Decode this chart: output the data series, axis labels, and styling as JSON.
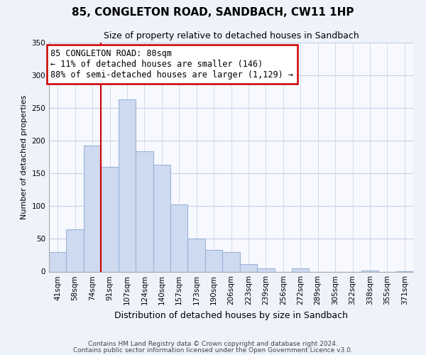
{
  "title": "85, CONGLETON ROAD, SANDBACH, CW11 1HP",
  "subtitle": "Size of property relative to detached houses in Sandbach",
  "xlabel": "Distribution of detached houses by size in Sandbach",
  "ylabel": "Number of detached properties",
  "bar_labels": [
    "41sqm",
    "58sqm",
    "74sqm",
    "91sqm",
    "107sqm",
    "124sqm",
    "140sqm",
    "157sqm",
    "173sqm",
    "190sqm",
    "206sqm",
    "223sqm",
    "239sqm",
    "256sqm",
    "272sqm",
    "289sqm",
    "305sqm",
    "322sqm",
    "338sqm",
    "355sqm",
    "371sqm"
  ],
  "bar_values": [
    30,
    65,
    193,
    160,
    263,
    184,
    163,
    103,
    50,
    33,
    30,
    11,
    5,
    0,
    5,
    0,
    0,
    0,
    2,
    0,
    1
  ],
  "bar_color": "#cddaf0",
  "bar_edge_color": "#9ab5d8",
  "vline_x_idx": 2,
  "vline_color": "#cc0000",
  "annotation_text": "85 CONGLETON ROAD: 80sqm\n← 11% of detached houses are smaller (146)\n88% of semi-detached houses are larger (1,129) →",
  "annotation_box_color": "#ffffff",
  "annotation_box_edge": "#cc0000",
  "ylim": [
    0,
    350
  ],
  "yticks": [
    0,
    50,
    100,
    150,
    200,
    250,
    300,
    350
  ],
  "footer_line1": "Contains HM Land Registry data © Crown copyright and database right 2024.",
  "footer_line2": "Contains public sector information licensed under the Open Government Licence v3.0.",
  "background_color": "#eef2fb",
  "plot_background_color": "#f8f9ff",
  "grid_color": "#c5cfe8",
  "title_fontsize": 11,
  "subtitle_fontsize": 9,
  "ylabel_fontsize": 8,
  "xlabel_fontsize": 9,
  "tick_fontsize": 7.5,
  "ann_fontsize": 8.5,
  "footer_fontsize": 6.5
}
